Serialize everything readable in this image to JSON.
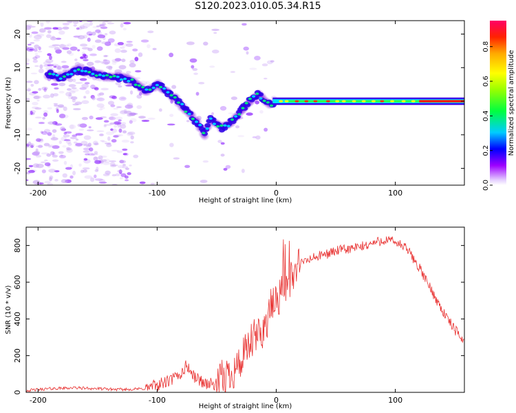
{
  "title": "S120.2023.010.05.34.R15",
  "chart_data": [
    {
      "type": "heatmap",
      "xlabel": "Height of straight line (km)",
      "ylabel": "Frequency (Hz)",
      "xlim": [
        -210,
        158
      ],
      "ylim": [
        -25,
        24
      ],
      "xticks": [
        -200,
        -100,
        0,
        100
      ],
      "yticks": [
        -20,
        -10,
        0,
        10,
        20
      ],
      "colorbar": {
        "label": "Normalized spectral amplitude",
        "range": [
          0,
          0.95
        ],
        "ticks": [
          0.0,
          0.2,
          0.4,
          0.6,
          0.8
        ]
      },
      "ridge": {
        "x": [
          -190,
          -180,
          -170,
          -160,
          -150,
          -140,
          -130,
          -120,
          -110,
          -100,
          -95,
          -90,
          -85,
          -80,
          -75,
          -70,
          -65,
          -60,
          -55,
          -50,
          -45,
          -40,
          -35,
          -30,
          -25,
          -20,
          -15,
          -10,
          -5,
          0,
          20,
          50,
          80,
          100,
          130,
          158
        ],
        "y": [
          8,
          7,
          9,
          9,
          8,
          7,
          7,
          6,
          3,
          5,
          4,
          2,
          1,
          -1,
          -3,
          -5,
          -7,
          -10,
          -5,
          -7,
          -8,
          -7,
          -5,
          -3,
          -1,
          1,
          2,
          0,
          -1,
          0,
          0,
          0,
          0,
          0,
          0,
          0
        ]
      }
    },
    {
      "type": "line",
      "xlabel": "Height of straight line (km)",
      "ylabel": "SNR (10 * v/v)",
      "xlim": [
        -210,
        158
      ],
      "ylim": [
        0,
        900
      ],
      "xticks": [
        -200,
        -100,
        0,
        100
      ],
      "yticks": [
        0,
        200,
        400,
        600,
        800
      ],
      "series": [
        {
          "color": "#e8302f",
          "x": [
            -210,
            -190,
            -170,
            -150,
            -130,
            -110,
            -100,
            -90,
            -80,
            -75,
            -70,
            -60,
            -50,
            -40,
            -30,
            -20,
            -10,
            -5,
            0,
            5,
            10,
            20,
            30,
            40,
            50,
            60,
            70,
            80,
            90,
            100,
            110,
            120,
            130,
            140,
            150,
            158
          ],
          "y": [
            10,
            20,
            25,
            20,
            15,
            20,
            40,
            60,
            100,
            150,
            90,
            50,
            40,
            100,
            160,
            280,
            350,
            450,
            500,
            550,
            600,
            700,
            730,
            750,
            770,
            780,
            790,
            810,
            830,
            820,
            780,
            680,
            560,
            440,
            340,
            280
          ]
        }
      ]
    }
  ]
}
